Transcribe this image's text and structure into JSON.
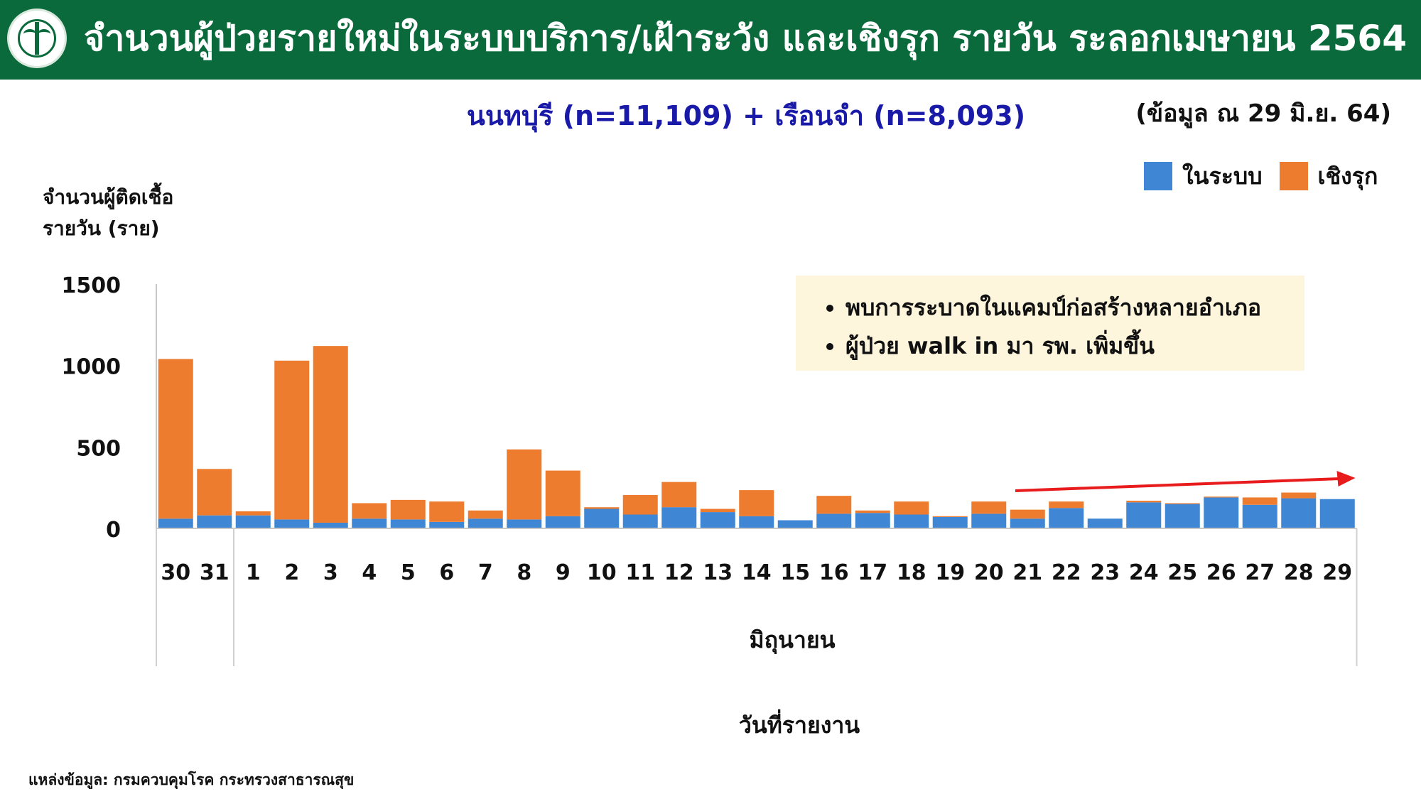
{
  "header": {
    "title": "จำนวนผู้ป่วยรายใหม่ในระบบบริการ/เฝ้าระวัง และเชิงรุก รายวัน  ระลอกเมษายน 2564",
    "logo_icon": "ministry-of-public-health-logo",
    "bg_color": "#0b6a3b"
  },
  "subtitle": "นนทบุรี (n=11,109) + เรือนจำ (n=8,093)",
  "as_of": "(ข้อมูล ณ 29 มิ.ย. 64)",
  "legend": [
    {
      "label": "ในระบบ",
      "color": "#3f86d4"
    },
    {
      "label": "เชิงรุก",
      "color": "#ee7c2e"
    }
  ],
  "y_label": {
    "line1": "จำนวนผู้ติดเชื้อ",
    "line2": "รายวัน (ราย)"
  },
  "callout": {
    "bullets": [
      "พบการระบาดในแคมป์ก่อสร้างหลายอำเภอ",
      "ผู้ป่วย walk in มา รพ. เพิ่มขึ้น"
    ]
  },
  "x_month": "มิถุนายน",
  "x_title": "วันที่รายงาน",
  "source": "แหล่งข้อมูล: กรมควบคุมโรค กระทรวงสาธารณสุข",
  "chart_data": {
    "type": "bar",
    "stacked": true,
    "categories": [
      "30",
      "31",
      "1",
      "2",
      "3",
      "4",
      "5",
      "6",
      "7",
      "8",
      "9",
      "10",
      "11",
      "12",
      "13",
      "14",
      "15",
      "16",
      "17",
      "18",
      "19",
      "20",
      "21",
      "22",
      "23",
      "24",
      "25",
      "26",
      "27",
      "28",
      "29"
    ],
    "series": [
      {
        "name": "ในระบบ",
        "color": "#3f86d4",
        "values": [
          60,
          80,
          80,
          55,
          35,
          60,
          55,
          40,
          60,
          55,
          75,
          120,
          85,
          130,
          100,
          75,
          50,
          90,
          95,
          85,
          70,
          90,
          60,
          125,
          60,
          160,
          150,
          190,
          145,
          185,
          180
        ]
      },
      {
        "name": "เชิงรุก",
        "color": "#ee7c2e",
        "values": [
          980,
          285,
          25,
          975,
          1085,
          95,
          120,
          125,
          50,
          430,
          280,
          10,
          120,
          155,
          20,
          160,
          0,
          110,
          15,
          80,
          5,
          75,
          55,
          40,
          0,
          10,
          5,
          5,
          45,
          35,
          0
        ]
      }
    ],
    "ylim": [
      0,
      1500
    ],
    "yticks": [
      0,
      500,
      1000,
      1500
    ],
    "legend_position": "top-right",
    "grid": false,
    "annotation": {
      "type": "arrow",
      "color": "#e81c1c",
      "from_category": "21",
      "to_category": "29",
      "trend": "rising"
    }
  }
}
